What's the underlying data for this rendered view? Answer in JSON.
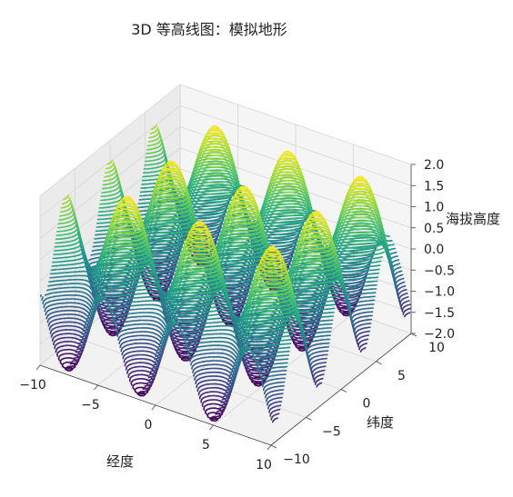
{
  "chart_data": {
    "type": "3d-contour",
    "title": "3D 等高线图：模拟地形",
    "xlabel": "经度",
    "ylabel": "纬度",
    "zlabel": "海拔高度",
    "xlim": [
      -10,
      10
    ],
    "ylim": [
      -10,
      10
    ],
    "zlim": [
      -2.0,
      2.0
    ],
    "x_ticks": [
      "−10",
      "−5",
      "0",
      "5",
      "10"
    ],
    "y_ticks": [
      "−10",
      "−5",
      "0",
      "5",
      "10"
    ],
    "z_ticks": [
      "−2.0",
      "−1.5",
      "−1.0",
      "−0.5",
      "0.0",
      "0.5",
      "1.0",
      "1.5",
      "2.0"
    ],
    "surface": "z = sin(x) + cos(y)",
    "colormap": "viridis",
    "contour_levels": 50,
    "grid": true
  }
}
